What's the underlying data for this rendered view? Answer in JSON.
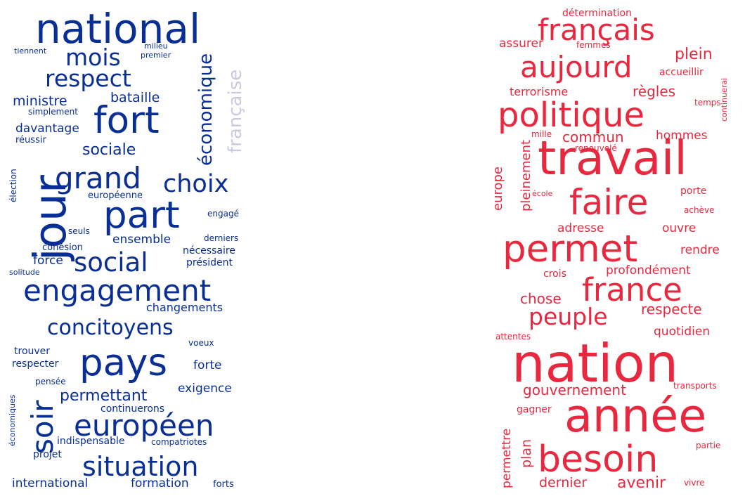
{
  "colors": {
    "blue": "#0a2f94",
    "light_blue": "#c8cbe0",
    "red": "#e8283e"
  },
  "left_cloud": {
    "words": [
      {
        "text": "national"
      },
      {
        "text": "tiennent"
      },
      {
        "text": "milieu"
      },
      {
        "text": "premier"
      },
      {
        "text": "mois"
      },
      {
        "text": "respect"
      },
      {
        "text": "économique"
      },
      {
        "text": "française",
        "light": true
      },
      {
        "text": "ministre"
      },
      {
        "text": "bataille"
      },
      {
        "text": "simplement"
      },
      {
        "text": "fort"
      },
      {
        "text": "davantage"
      },
      {
        "text": "réussir"
      },
      {
        "text": "sociale"
      },
      {
        "text": "jour"
      },
      {
        "text": "élection"
      },
      {
        "text": "grand"
      },
      {
        "text": "choix"
      },
      {
        "text": "européenne"
      },
      {
        "text": "part"
      },
      {
        "text": "engagé"
      },
      {
        "text": "seuls"
      },
      {
        "text": "ensemble"
      },
      {
        "text": "derniers"
      },
      {
        "text": "cohésion"
      },
      {
        "text": "nécessaire"
      },
      {
        "text": "force"
      },
      {
        "text": "social"
      },
      {
        "text": "président"
      },
      {
        "text": "solitude"
      },
      {
        "text": "engagement"
      },
      {
        "text": "changements"
      },
      {
        "text": "concitoyens"
      },
      {
        "text": "voeux"
      },
      {
        "text": "trouver"
      },
      {
        "text": "pays"
      },
      {
        "text": "respecter"
      },
      {
        "text": "forte"
      },
      {
        "text": "pensée"
      },
      {
        "text": "exigence"
      },
      {
        "text": "soir"
      },
      {
        "text": "permettant"
      },
      {
        "text": "économiques"
      },
      {
        "text": "continuerons"
      },
      {
        "text": "européen"
      },
      {
        "text": "indispensable"
      },
      {
        "text": "compatriotes"
      },
      {
        "text": "projet"
      },
      {
        "text": "situation"
      },
      {
        "text": "international"
      },
      {
        "text": "formation"
      },
      {
        "text": "forts"
      }
    ]
  },
  "right_cloud": {
    "words": [
      {
        "text": "détermination"
      },
      {
        "text": "français"
      },
      {
        "text": "assurer"
      },
      {
        "text": "femmes"
      },
      {
        "text": "plein"
      },
      {
        "text": "aujourd"
      },
      {
        "text": "accueillir"
      },
      {
        "text": "terrorisme"
      },
      {
        "text": "règles"
      },
      {
        "text": "continuerai"
      },
      {
        "text": "temps"
      },
      {
        "text": "politique"
      },
      {
        "text": "mille"
      },
      {
        "text": "commun"
      },
      {
        "text": "hommes"
      },
      {
        "text": "renouvelé"
      },
      {
        "text": "travail"
      },
      {
        "text": "europe"
      },
      {
        "text": "pleinement"
      },
      {
        "text": "école"
      },
      {
        "text": "porte"
      },
      {
        "text": "faire"
      },
      {
        "text": "achève"
      },
      {
        "text": "adresse"
      },
      {
        "text": "ouvre"
      },
      {
        "text": "permet"
      },
      {
        "text": "rendre"
      },
      {
        "text": "crois"
      },
      {
        "text": "profondément"
      },
      {
        "text": "france"
      },
      {
        "text": "chose"
      },
      {
        "text": "respecte"
      },
      {
        "text": "peuple"
      },
      {
        "text": "quotidien"
      },
      {
        "text": "attentes"
      },
      {
        "text": "nation"
      },
      {
        "text": "gouvernement"
      },
      {
        "text": "transports"
      },
      {
        "text": "gagner"
      },
      {
        "text": "année"
      },
      {
        "text": "permettre"
      },
      {
        "text": "plan"
      },
      {
        "text": "besoin"
      },
      {
        "text": "partie"
      },
      {
        "text": "dernier"
      },
      {
        "text": "avenir"
      },
      {
        "text": "vivre"
      }
    ]
  }
}
